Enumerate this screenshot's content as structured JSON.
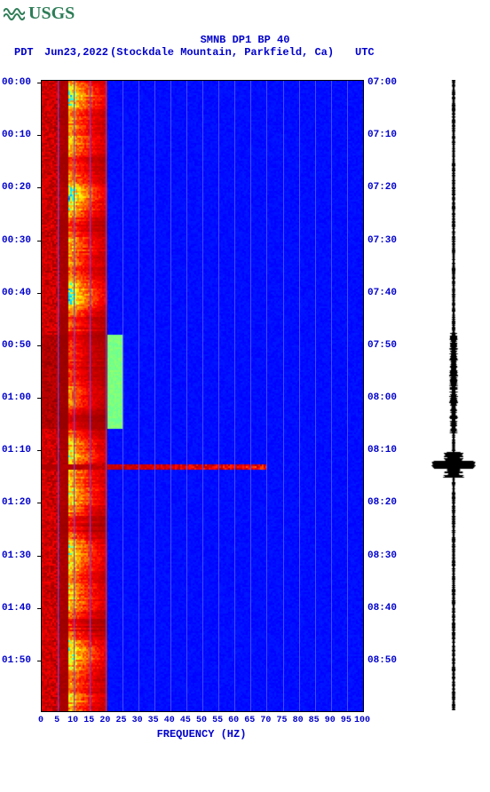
{
  "logo_text": "USGS",
  "title": "SMNB DP1 BP 40",
  "date": "Jun23,2022",
  "location": "(Stockdale Mountain, Parkfield, Ca)",
  "left_tz": "PDT",
  "right_tz": "UTC",
  "x_axis_label": "FREQUENCY (HZ)",
  "chart": {
    "type": "spectrogram",
    "background_color": "#0000ff",
    "grid_color": "#5050ff",
    "text_color": "#0000cc",
    "logo_color": "#2e7d57",
    "x_ticks": [
      0,
      5,
      10,
      15,
      20,
      25,
      30,
      35,
      40,
      45,
      50,
      55,
      60,
      65,
      70,
      75,
      80,
      85,
      90,
      95,
      100
    ],
    "y_ticks_left": [
      "00:00",
      "00:10",
      "00:20",
      "00:30",
      "00:40",
      "00:50",
      "01:00",
      "01:10",
      "01:20",
      "01:30",
      "01:40",
      "01:50"
    ],
    "y_ticks_right": [
      "07:00",
      "07:10",
      "07:20",
      "07:30",
      "07:40",
      "07:50",
      "08:00",
      "08:10",
      "08:20",
      "08:30",
      "08:40",
      "08:50"
    ],
    "colormap_stops": [
      "#8b0000",
      "#ff0000",
      "#ff8c00",
      "#ffff00",
      "#00ffff",
      "#0055ff",
      "#0000ff"
    ],
    "lowfreq_band": {
      "start_hz": 0,
      "end_hz": 8,
      "desc": "persistent hot band across full time range"
    },
    "event": {
      "time_frac": 0.61,
      "desc": "broadband transient (earthquake)",
      "max_hz": 70
    },
    "waveform_color": "#000000"
  }
}
